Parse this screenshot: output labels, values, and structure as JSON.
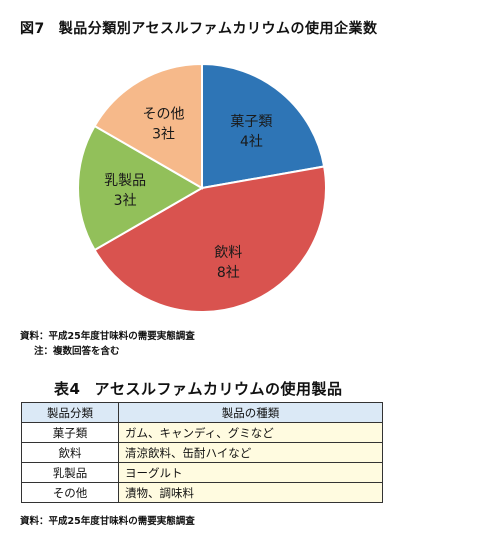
{
  "figure": {
    "number": "図7",
    "title": "製品分類別アセスルファムカリウムの使用企業数"
  },
  "chart_data": {
    "type": "pie",
    "unit": "社",
    "slices": [
      {
        "name": "菓子類",
        "value": 4,
        "label": "4社",
        "color": "#2e75b6"
      },
      {
        "name": "飲料",
        "value": 8,
        "label": "8社",
        "color": "#d9534f"
      },
      {
        "name": "乳製品",
        "value": 3,
        "label": "3社",
        "color": "#92c05a"
      },
      {
        "name": "その他",
        "value": 3,
        "label": "3社",
        "color": "#f6b98a"
      }
    ]
  },
  "notes": {
    "source": "資料：平成25年度甘味料の需要実態調査",
    "note": "注：複数回答を含む"
  },
  "table": {
    "number": "表4",
    "title": "アセスルファムカリウムの使用製品",
    "headers": [
      "製品分類",
      "製品の種類"
    ],
    "rows": [
      {
        "category": "菓子類",
        "items": "ガム、キャンディ、グミなど"
      },
      {
        "category": "飲料",
        "items": "清涼飲料、缶酎ハイなど"
      },
      {
        "category": "乳製品",
        "items": "ヨーグルト"
      },
      {
        "category": "その他",
        "items": "漬物、調味料"
      }
    ],
    "source": "資料：平成25年度甘味料の需要実態調査"
  }
}
